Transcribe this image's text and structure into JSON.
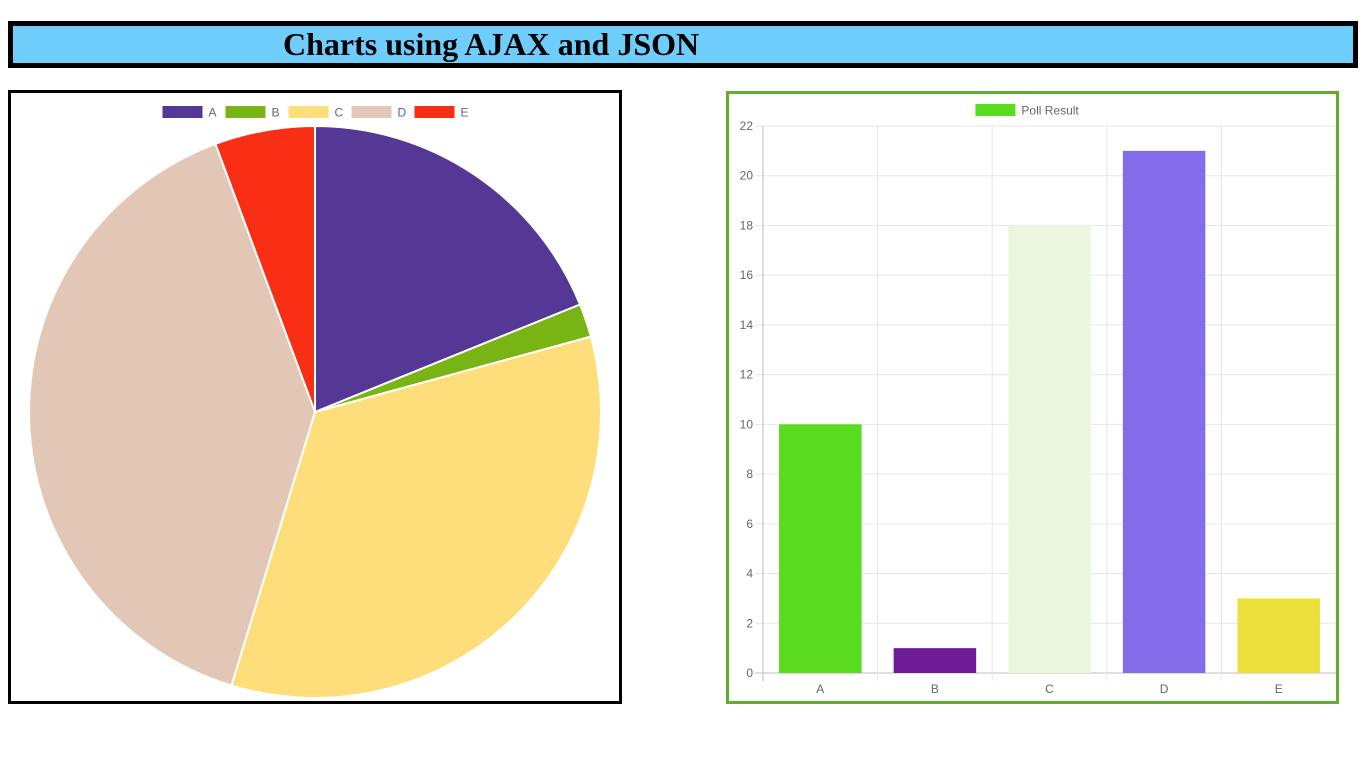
{
  "header": {
    "title": "Charts using AJAX and JSON"
  },
  "chart_data": [
    {
      "type": "pie",
      "categories": [
        "A",
        "B",
        "C",
        "D",
        "E"
      ],
      "values": [
        10,
        1,
        18,
        21,
        3
      ],
      "colors": [
        "#553795",
        "#77b414",
        "#fede7b",
        "#e2c7b7",
        "#f82e15"
      ],
      "legend": "top"
    },
    {
      "type": "bar",
      "categories": [
        "A",
        "B",
        "C",
        "D",
        "E"
      ],
      "series": [
        {
          "name": "Poll Result",
          "values": [
            10,
            1,
            18,
            21,
            3
          ]
        }
      ],
      "bar_colors": [
        "#59db1f",
        "#6e1b98",
        "#eaf7de",
        "#836cea",
        "#ece13c"
      ],
      "legend_color": "#59db1f",
      "ylim": [
        0,
        22
      ],
      "yticks": [
        0,
        2,
        4,
        6,
        8,
        10,
        12,
        14,
        16,
        18,
        20,
        22
      ],
      "grid": true,
      "legend": "top"
    }
  ]
}
